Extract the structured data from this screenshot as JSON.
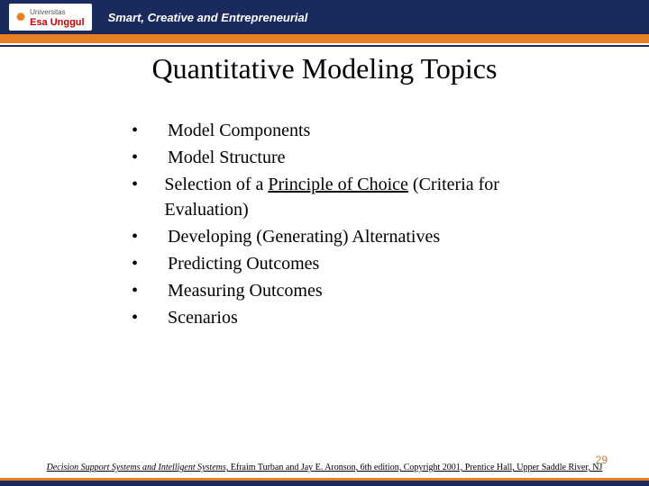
{
  "header": {
    "logo_mark": "✺",
    "logo_top": "Universitas",
    "logo_name": "Esa Unggul",
    "tagline": "Smart, Creative and Entrepreneurial"
  },
  "title": "Quantitative Modeling Topics",
  "bullets": [
    {
      "pre": "Model Components",
      "u": "",
      "post": ""
    },
    {
      "pre": "Model Structure",
      "u": "",
      "post": ""
    },
    {
      "pre": "Selection of a ",
      "u": "Principle of Choice",
      "post": " (Criteria for Evaluation)"
    },
    {
      "pre": "Developing (Generating) Alternatives",
      "u": "",
      "post": ""
    },
    {
      "pre": "Predicting Outcomes",
      "u": "",
      "post": ""
    },
    {
      "pre": "Measuring Outcomes",
      "u": "",
      "post": ""
    },
    {
      "pre": "Scenarios",
      "u": "",
      "post": ""
    }
  ],
  "footer": {
    "book": "Decision Support Systems and Intelligent Systems,",
    "rest": " Efraim Turban and Jay E. Aronson, 6th edition, Copyright 2001, Prentice Hall, Upper Saddle River, NJ"
  },
  "page_number": "29",
  "colors": {
    "header_bg": "#1a2a5c",
    "orange": "#e67e22",
    "page_num": "#b9824a"
  }
}
